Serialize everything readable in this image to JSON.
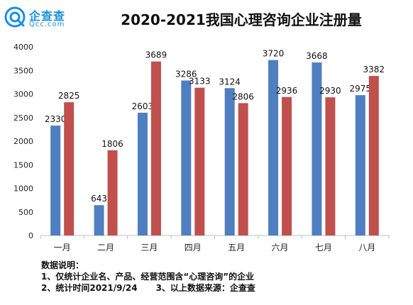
{
  "logo": {
    "cn": "企查查",
    "en": "Qcc.com",
    "color": "#1a8fe0"
  },
  "title": "2020-2021我国心理咨询企业注册量",
  "chart_data": {
    "type": "bar",
    "title": "2020-2021我国心理咨询企业注册量",
    "categories": [
      "一月",
      "二月",
      "三月",
      "四月",
      "五月",
      "六月",
      "七月",
      "八月"
    ],
    "series": [
      {
        "values": [
          2330,
          643,
          2603,
          3286,
          3124,
          3720,
          3668,
          2975
        ],
        "color": "#4f7fc0"
      },
      {
        "values": [
          2825,
          1806,
          3689,
          3133,
          2806,
          2936,
          2930,
          3382
        ],
        "color": "#c0504d"
      }
    ],
    "ylim": [
      0,
      4000
    ],
    "yticks": [
      0,
      500,
      1000,
      1500,
      2000,
      2500,
      3000,
      3500,
      4000
    ],
    "xlabel": "",
    "ylabel": "",
    "grid": false,
    "legend": "none"
  },
  "notes": {
    "heading": "数据说明：",
    "line1": "1、仅统计企业名、产品、经营范围含“心理咨询”的企业",
    "line2a": "2、统计时间2021/9/24",
    "line2b": "3、以上数据来源：企查查"
  }
}
